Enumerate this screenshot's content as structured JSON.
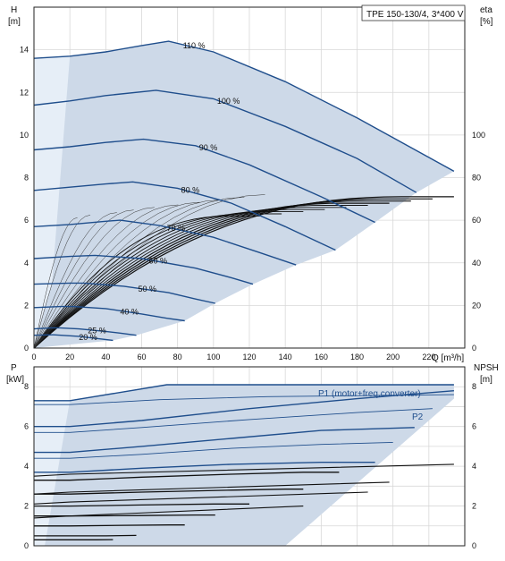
{
  "chart_data": [
    {
      "type": "line",
      "title": "TPE 150-130/4, 3*400 V",
      "xlabel": "Q [m³/h]",
      "ylabel_top": "H",
      "ylabel_unit": "[m]",
      "y2label_top": "eta",
      "y2label_unit": "[%]",
      "xlim": [
        0,
        240
      ],
      "ylim": [
        0,
        16
      ],
      "y2lim": [
        0,
        160
      ],
      "xticks": [
        0,
        20,
        40,
        60,
        80,
        100,
        120,
        140,
        160,
        180,
        200,
        220
      ],
      "yticks": [
        0,
        2,
        4,
        6,
        8,
        10,
        12,
        14
      ],
      "y2ticks": [
        0,
        20,
        40,
        60,
        80,
        100
      ],
      "grid": true,
      "speed_curves": [
        {
          "name": "110 %",
          "x": [
            0,
            20,
            40,
            60,
            75,
            100,
            140,
            180,
            234
          ],
          "y": [
            13.6,
            13.7,
            13.9,
            14.2,
            14.4,
            13.9,
            12.5,
            10.8,
            8.3
          ]
        },
        {
          "name": "100 %",
          "x": [
            0,
            20,
            40,
            68,
            100,
            140,
            180,
            213
          ],
          "y": [
            11.4,
            11.6,
            11.85,
            12.1,
            11.7,
            10.4,
            8.9,
            7.3
          ]
        },
        {
          "name": "90 %",
          "x": [
            0,
            20,
            40,
            61,
            90,
            120,
            160,
            190
          ],
          "y": [
            9.3,
            9.45,
            9.65,
            9.8,
            9.5,
            8.6,
            7.1,
            5.9
          ]
        },
        {
          "name": "80 %",
          "x": [
            0,
            20,
            40,
            55,
            80,
            110,
            140,
            168
          ],
          "y": [
            7.4,
            7.55,
            7.7,
            7.8,
            7.5,
            6.8,
            5.7,
            4.6
          ]
        },
        {
          "name": "70 %",
          "x": [
            0,
            20,
            40,
            48,
            70,
            100,
            125,
            146
          ],
          "y": [
            5.7,
            5.8,
            5.95,
            6.0,
            5.75,
            5.2,
            4.5,
            3.9
          ]
        },
        {
          "name": "60 %",
          "x": [
            0,
            20,
            34,
            60,
            90,
            110,
            122
          ],
          "y": [
            4.2,
            4.3,
            4.35,
            4.2,
            3.75,
            3.3,
            3.0
          ]
        },
        {
          "name": "50 %",
          "x": [
            0,
            20,
            28,
            50,
            75,
            90,
            101
          ],
          "y": [
            3.0,
            3.05,
            3.05,
            2.9,
            2.6,
            2.3,
            2.1
          ]
        },
        {
          "name": "40 %",
          "x": [
            0,
            15,
            22,
            40,
            60,
            74,
            84
          ],
          "y": [
            1.9,
            1.95,
            1.95,
            1.85,
            1.6,
            1.4,
            1.28
          ]
        },
        {
          "name": "25 %",
          "x": [
            0,
            10,
            14,
            25,
            40,
            48,
            57
          ],
          "y": [
            0.9,
            0.95,
            0.95,
            0.9,
            0.78,
            0.7,
            0.6
          ]
        },
        {
          "name": "20 %",
          "x": [
            0,
            10,
            11,
            25,
            35,
            44
          ],
          "y": [
            0.6,
            0.62,
            0.62,
            0.55,
            0.45,
            0.36
          ]
        }
      ],
      "efficiency_max_pct": [
        71,
        70,
        69,
        68,
        67,
        66,
        65,
        64,
        63,
        62
      ],
      "efficiency_end_q": [
        234,
        222,
        210,
        198,
        186,
        174,
        162,
        150,
        138,
        126
      ]
    },
    {
      "type": "line",
      "xlabel": "",
      "ylabel_top": "P",
      "ylabel_unit": "[kW]",
      "y2label_top": "NPSH",
      "y2label_unit": "[m]",
      "xlim": [
        0,
        240
      ],
      "ylim": [
        0,
        9
      ],
      "y2lim": [
        0,
        9
      ],
      "yticks": [
        0,
        2,
        4,
        6,
        8
      ],
      "y2ticks": [
        0,
        2,
        4,
        6,
        8
      ],
      "grid": true,
      "annotations": [
        "P1 (motor+freq.converter)",
        "P2"
      ],
      "p1_curves": [
        {
          "x": [
            0,
            20,
            74,
            120,
            234
          ],
          "y": [
            7.3,
            7.3,
            8.1,
            8.1,
            8.1
          ]
        },
        {
          "x": [
            0,
            20,
            60,
            120,
            180,
            234
          ],
          "y": [
            6.0,
            6.0,
            6.3,
            6.9,
            7.4,
            7.8
          ]
        },
        {
          "x": [
            0,
            20,
            60,
            110,
            160,
            212
          ],
          "y": [
            4.7,
            4.7,
            5.0,
            5.4,
            5.8,
            5.95
          ]
        },
        {
          "x": [
            0,
            20,
            60,
            110,
            160,
            190
          ],
          "y": [
            3.7,
            3.7,
            3.9,
            4.1,
            4.2,
            4.2
          ]
        }
      ],
      "p2_curves": [
        {
          "x": [
            0,
            20,
            70,
            130,
            180,
            234
          ],
          "y": [
            7.1,
            7.1,
            7.35,
            7.5,
            7.55,
            7.6
          ]
        },
        {
          "x": [
            0,
            20,
            60,
            120,
            180,
            222
          ],
          "y": [
            5.7,
            5.7,
            5.95,
            6.35,
            6.7,
            6.9
          ]
        },
        {
          "x": [
            0,
            20,
            60,
            110,
            160,
            200
          ],
          "y": [
            4.4,
            4.4,
            4.6,
            4.9,
            5.1,
            5.2
          ]
        },
        {
          "x": [
            0,
            20,
            60,
            110,
            150,
            170
          ],
          "y": [
            3.3,
            3.3,
            3.45,
            3.6,
            3.7,
            3.7
          ]
        },
        {
          "x": [
            0,
            20,
            60,
            110,
            140,
            150
          ],
          "y": [
            2.6,
            2.6,
            2.7,
            2.8,
            2.85,
            2.85
          ]
        },
        {
          "x": [
            0,
            20,
            60,
            100,
            120
          ],
          "y": [
            2.0,
            2.0,
            2.05,
            2.1,
            2.1
          ]
        },
        {
          "x": [
            0,
            20,
            60,
            90,
            101
          ],
          "y": [
            1.5,
            1.5,
            1.52,
            1.55,
            1.55
          ]
        },
        {
          "x": [
            0,
            20,
            50,
            75,
            84
          ],
          "y": [
            1.0,
            1.0,
            1.03,
            1.05,
            1.05
          ]
        },
        {
          "x": [
            0,
            20,
            40,
            57
          ],
          "y": [
            0.5,
            0.5,
            0.5,
            0.52
          ]
        },
        {
          "x": [
            0,
            20,
            35,
            44
          ],
          "y": [
            0.3,
            0.3,
            0.3,
            0.31
          ]
        }
      ],
      "npsh_curves": [
        {
          "x": [
            0,
            60,
            120,
            180,
            234
          ],
          "y": [
            0.1,
            0.15,
            0.3,
            0.6,
            1.4
          ]
        },
        {
          "x": [
            0,
            60,
            120,
            180,
            222
          ],
          "y": [
            0.1,
            0.15,
            0.3,
            0.6,
            1.2
          ]
        },
        {
          "x": [
            0,
            60,
            120,
            170,
            210
          ],
          "y": [
            0.1,
            0.15,
            0.3,
            0.6,
            1.0
          ]
        }
      ]
    }
  ]
}
